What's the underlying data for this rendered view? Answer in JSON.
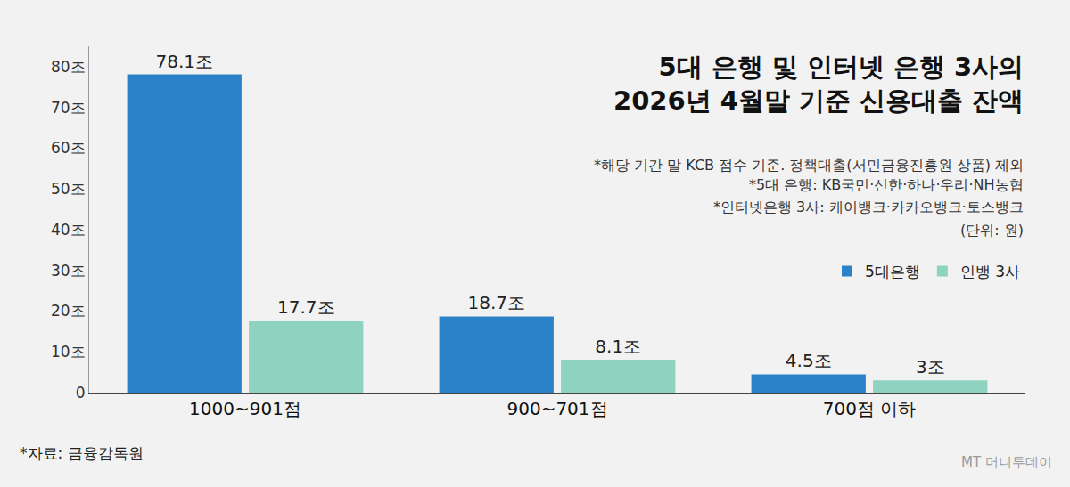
{
  "chart_data": {
    "type": "bar",
    "title": "5대 은행 및 인터넷 은행 3사의\n2026년 4월말 기준 신용대출 잔액",
    "annotations": [
      "*해당 기간 말 KCB 점수 기준. 정책대출(서민금융진흥원 상품) 제외",
      "*5대 은행: KB국민·신한·하나·우리·NH농협",
      "*인터넷은행 3사: 케이뱅크·카카오뱅크·토스뱅크",
      "(단위: 원)",
      "*자료: 금융감독원",
      "MT 머니투데이"
    ],
    "categories": [
      "1000~901점",
      "900~701점",
      "700점 이하"
    ],
    "series": [
      {
        "name": "5대은행",
        "color": "#2b82c9",
        "values": [
          78.1,
          18.7,
          4.5
        ],
        "value_labels": [
          "78.1조",
          "18.7조",
          "4.5조"
        ]
      },
      {
        "name": "인뱅 3사",
        "color": "#8ed3c0",
        "values": [
          17.7,
          8.1,
          3
        ],
        "value_labels": [
          "17.7조",
          "8.1조",
          "3조"
        ]
      }
    ],
    "ylim": [
      0,
      85
    ],
    "yticks": [
      0,
      {
        "value": 10,
        "label": "10조"
      },
      {
        "value": 20,
        "label": "20조"
      },
      {
        "value": 30,
        "label": "30조"
      },
      {
        "value": 40,
        "label": "40조"
      },
      {
        "value": 50,
        "label": "50조"
      },
      {
        "value": 60,
        "label": "60조"
      },
      {
        "value": 70,
        "label": "70조"
      },
      {
        "value": 80,
        "label": "80조"
      }
    ],
    "grid": false,
    "legend": "right",
    "data_labels": true,
    "stacked": false
  }
}
